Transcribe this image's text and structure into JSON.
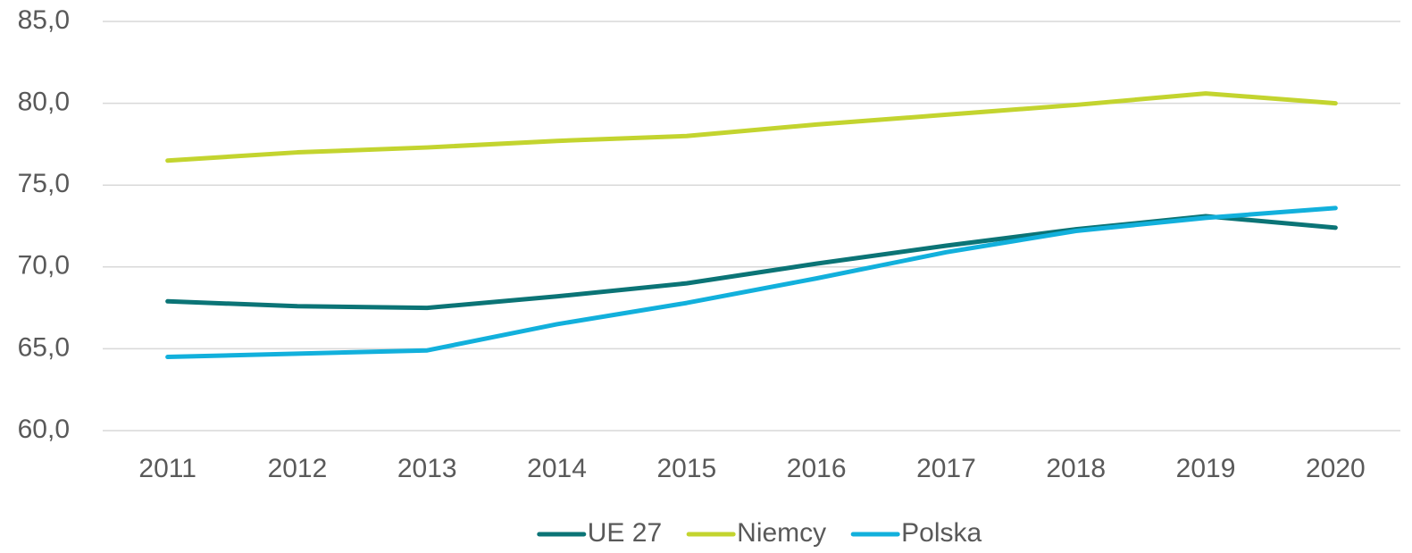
{
  "chart_data": {
    "type": "line",
    "categories": [
      "2011",
      "2012",
      "2013",
      "2014",
      "2015",
      "2016",
      "2017",
      "2018",
      "2019",
      "2020"
    ],
    "series": [
      {
        "name": "UE 27",
        "color": "#0b7476",
        "values": [
          67.9,
          67.6,
          67.5,
          68.2,
          69.0,
          70.2,
          71.3,
          72.3,
          73.1,
          72.4
        ]
      },
      {
        "name": "Niemcy",
        "color": "#c3d42f",
        "values": [
          76.5,
          77.0,
          77.3,
          77.7,
          78.0,
          78.7,
          79.3,
          79.9,
          80.6,
          80.0
        ]
      },
      {
        "name": "Polska",
        "color": "#12b0dc",
        "values": [
          64.5,
          64.7,
          64.9,
          66.5,
          67.8,
          69.3,
          70.9,
          72.2,
          73.0,
          73.6
        ]
      }
    ],
    "ylim": [
      60,
      85
    ],
    "yticks": [
      {
        "value": 60,
        "label": "60,0"
      },
      {
        "value": 65,
        "label": "65,0"
      },
      {
        "value": 70,
        "label": "70,0"
      },
      {
        "value": 75,
        "label": "75,0"
      },
      {
        "value": 80,
        "label": "80,0"
      },
      {
        "value": 85,
        "label": "85,0"
      }
    ],
    "grid": true,
    "legend": "bottom"
  }
}
